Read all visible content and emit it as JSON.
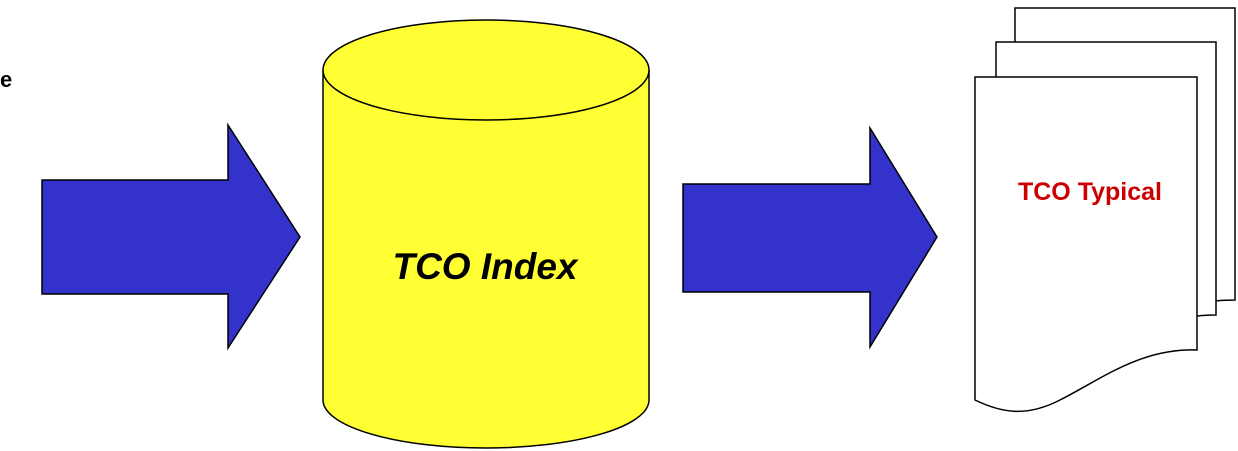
{
  "labels": {
    "partial_left_text": "e",
    "database": "TCO Index",
    "documents": "TCO Typical"
  },
  "colors": {
    "arrow_fill": "#3333cc",
    "database_fill": "#ffff33",
    "document_fill": "#ffffff",
    "document_text": "#cc0000",
    "outline": "#000000"
  }
}
